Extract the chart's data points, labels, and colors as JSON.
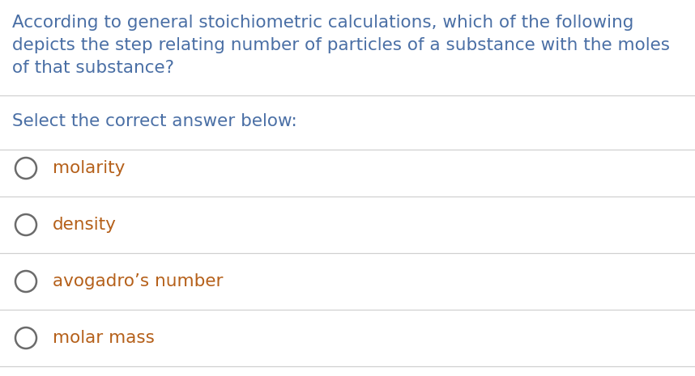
{
  "background_color": "#ffffff",
  "question_text_lines": [
    "According to general stoichiometric calculations, which of the following",
    "depicts the step relating number of particles of a substance with the moles",
    "of that substance?"
  ],
  "prompt_text": "Select the correct answer below:",
  "options": [
    "molarity",
    "density",
    "avogadro’s number",
    "molar mass"
  ],
  "question_text_color": "#4a6fa5",
  "prompt_text_color": "#4a6fa5",
  "option_text_color": "#b5601a",
  "line_color": "#d0d0d0",
  "circle_edge_color": "#6b6b6b",
  "question_fontsize": 15.5,
  "prompt_fontsize": 15.5,
  "option_fontsize": 15.5,
  "fig_width": 8.58,
  "fig_height": 4.65,
  "dpi": 100
}
